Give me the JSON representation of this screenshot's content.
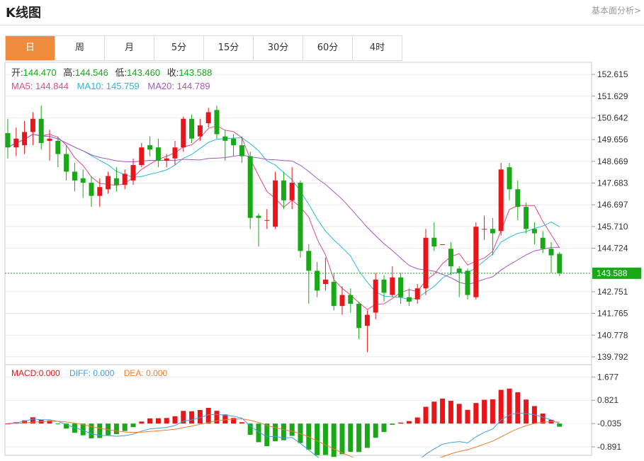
{
  "header": {
    "title": "K线图",
    "link": "基本面分析>"
  },
  "tabs": [
    {
      "label": "日",
      "active": true
    },
    {
      "label": "周",
      "active": false
    },
    {
      "label": "月",
      "active": false
    },
    {
      "label": "5分",
      "active": false
    },
    {
      "label": "15分",
      "active": false
    },
    {
      "label": "30分",
      "active": false
    },
    {
      "label": "60分",
      "active": false
    },
    {
      "label": "4时",
      "active": false
    }
  ],
  "ohlc_info": {
    "open_label": "开:",
    "open": "144.470",
    "high_label": "高:",
    "high": "144.546",
    "low_label": "低:",
    "low": "143.460",
    "close_label": "收:",
    "close": "143.588"
  },
  "ma_info": [
    {
      "label": "MA5: 144.844",
      "color": "#e24a8a"
    },
    {
      "label": "MA10: 145.759",
      "color": "#2ab8d8"
    },
    {
      "label": "MA20: 144.789",
      "color": "#a857c2"
    }
  ],
  "macd_info": [
    {
      "label": "MACD:0.000",
      "color": "#e8151b"
    },
    {
      "label": "DIFF: 0.000",
      "color": "#3d9ee0"
    },
    {
      "label": "DEA: 0.000",
      "color": "#f07c2a"
    }
  ],
  "colors": {
    "up": "#e8151b",
    "down": "#18a818",
    "last_price_bg": "#18a818"
  },
  "chart_data": [
    {
      "type": "candlestick",
      "y_ticks": [
        "152.615",
        "151.629",
        "150.642",
        "149.656",
        "148.669",
        "147.683",
        "146.697",
        "145.710",
        "144.724",
        "142.751",
        "141.765",
        "140.778",
        "139.792"
      ],
      "ylim": [
        139.5,
        153.1
      ],
      "last_price": "143.588",
      "candles": [
        [
          149.95,
          149.3,
          150.6,
          148.8
        ],
        [
          149.3,
          149.7,
          150.2,
          148.9
        ],
        [
          149.4,
          150.0,
          150.5,
          149.0
        ],
        [
          150.0,
          150.6,
          150.9,
          149.4
        ],
        [
          150.6,
          149.5,
          151.2,
          149.2
        ],
        [
          149.6,
          149.7,
          150.1,
          148.7
        ],
        [
          149.6,
          149.0,
          149.8,
          148.4
        ],
        [
          149.0,
          148.2,
          149.4,
          147.8
        ],
        [
          148.2,
          147.8,
          148.6,
          147.3
        ],
        [
          147.9,
          147.7,
          148.3,
          147.0
        ],
        [
          147.7,
          147.1,
          148.0,
          146.6
        ],
        [
          147.1,
          147.5,
          147.9,
          146.6
        ],
        [
          147.4,
          148.0,
          148.2,
          147.2
        ],
        [
          147.9,
          147.6,
          148.4,
          147.3
        ],
        [
          147.6,
          148.1,
          148.3,
          147.4
        ],
        [
          147.8,
          148.5,
          148.8,
          147.6
        ],
        [
          148.5,
          149.3,
          149.5,
          148.4
        ],
        [
          149.4,
          149.2,
          149.8,
          148.9
        ],
        [
          149.3,
          148.7,
          149.7,
          148.4
        ],
        [
          148.7,
          148.8,
          149.0,
          148.4
        ],
        [
          148.8,
          149.3,
          149.6,
          148.5
        ],
        [
          149.3,
          150.6,
          150.7,
          149.1
        ],
        [
          150.6,
          149.7,
          150.8,
          149.5
        ],
        [
          149.8,
          150.3,
          150.6,
          149.6
        ],
        [
          150.4,
          150.9,
          151.1,
          150.2
        ],
        [
          151.0,
          149.9,
          151.2,
          149.7
        ],
        [
          149.8,
          149.6,
          150.1,
          148.7
        ],
        [
          149.7,
          149.4,
          149.9,
          148.9
        ],
        [
          149.4,
          148.9,
          149.8,
          148.6
        ],
        [
          148.9,
          146.1,
          149.1,
          145.6
        ],
        [
          146.2,
          146.1,
          146.3,
          144.8
        ],
        [
          146.0,
          146.0,
          146.5,
          145.6
        ],
        [
          145.7,
          147.8,
          148.2,
          145.6
        ],
        [
          147.8,
          146.9,
          148.2,
          146.5
        ],
        [
          146.9,
          147.7,
          148.4,
          146.5
        ],
        [
          147.7,
          144.6,
          147.8,
          144.3
        ],
        [
          144.6,
          143.7,
          144.9,
          142.2
        ],
        [
          143.7,
          142.8,
          144.1,
          142.5
        ],
        [
          143.1,
          143.3,
          144.3,
          142.8
        ],
        [
          143.2,
          142.1,
          143.6,
          141.9
        ],
        [
          142.1,
          142.6,
          143.0,
          141.7
        ],
        [
          142.6,
          142.2,
          142.9,
          141.8
        ],
        [
          142.2,
          141.1,
          142.3,
          140.6
        ],
        [
          141.2,
          141.7,
          141.9,
          140.0
        ],
        [
          141.8,
          143.3,
          143.6,
          141.5
        ],
        [
          143.3,
          142.7,
          143.5,
          142.3
        ],
        [
          142.6,
          143.4,
          143.9,
          142.5
        ],
        [
          143.4,
          142.5,
          143.6,
          142.2
        ],
        [
          142.5,
          142.3,
          142.9,
          142.1
        ],
        [
          142.4,
          142.9,
          143.1,
          142.2
        ],
        [
          142.9,
          145.2,
          145.6,
          142.6
        ],
        [
          145.2,
          144.8,
          145.9,
          144.6
        ],
        [
          144.9,
          144.9,
          144.9,
          144.9
        ],
        [
          144.7,
          143.9,
          145.0,
          143.5
        ],
        [
          143.8,
          143.6,
          143.9,
          142.5
        ],
        [
          143.7,
          142.6,
          143.8,
          142.4
        ],
        [
          142.5,
          145.7,
          145.9,
          142.4
        ],
        [
          145.6,
          145.6,
          146.2,
          145.1
        ],
        [
          145.6,
          145.4,
          146.1,
          144.4
        ],
        [
          145.5,
          148.3,
          148.6,
          145.3
        ],
        [
          148.4,
          147.4,
          148.6,
          146.9
        ],
        [
          147.4,
          146.6,
          147.8,
          146.0
        ],
        [
          146.6,
          145.6,
          146.8,
          145.4
        ],
        [
          145.6,
          145.4,
          145.9,
          144.9
        ],
        [
          145.2,
          144.7,
          145.5,
          144.5
        ],
        [
          144.7,
          144.4,
          145.0,
          143.6
        ],
        [
          144.47,
          143.59,
          144.55,
          143.46
        ]
      ]
    },
    {
      "type": "macd",
      "y_ticks": [
        "1.677",
        "0.821",
        "-0.035",
        "-0.891"
      ],
      "ylim": [
        -1.15,
        2.05
      ]
    }
  ]
}
